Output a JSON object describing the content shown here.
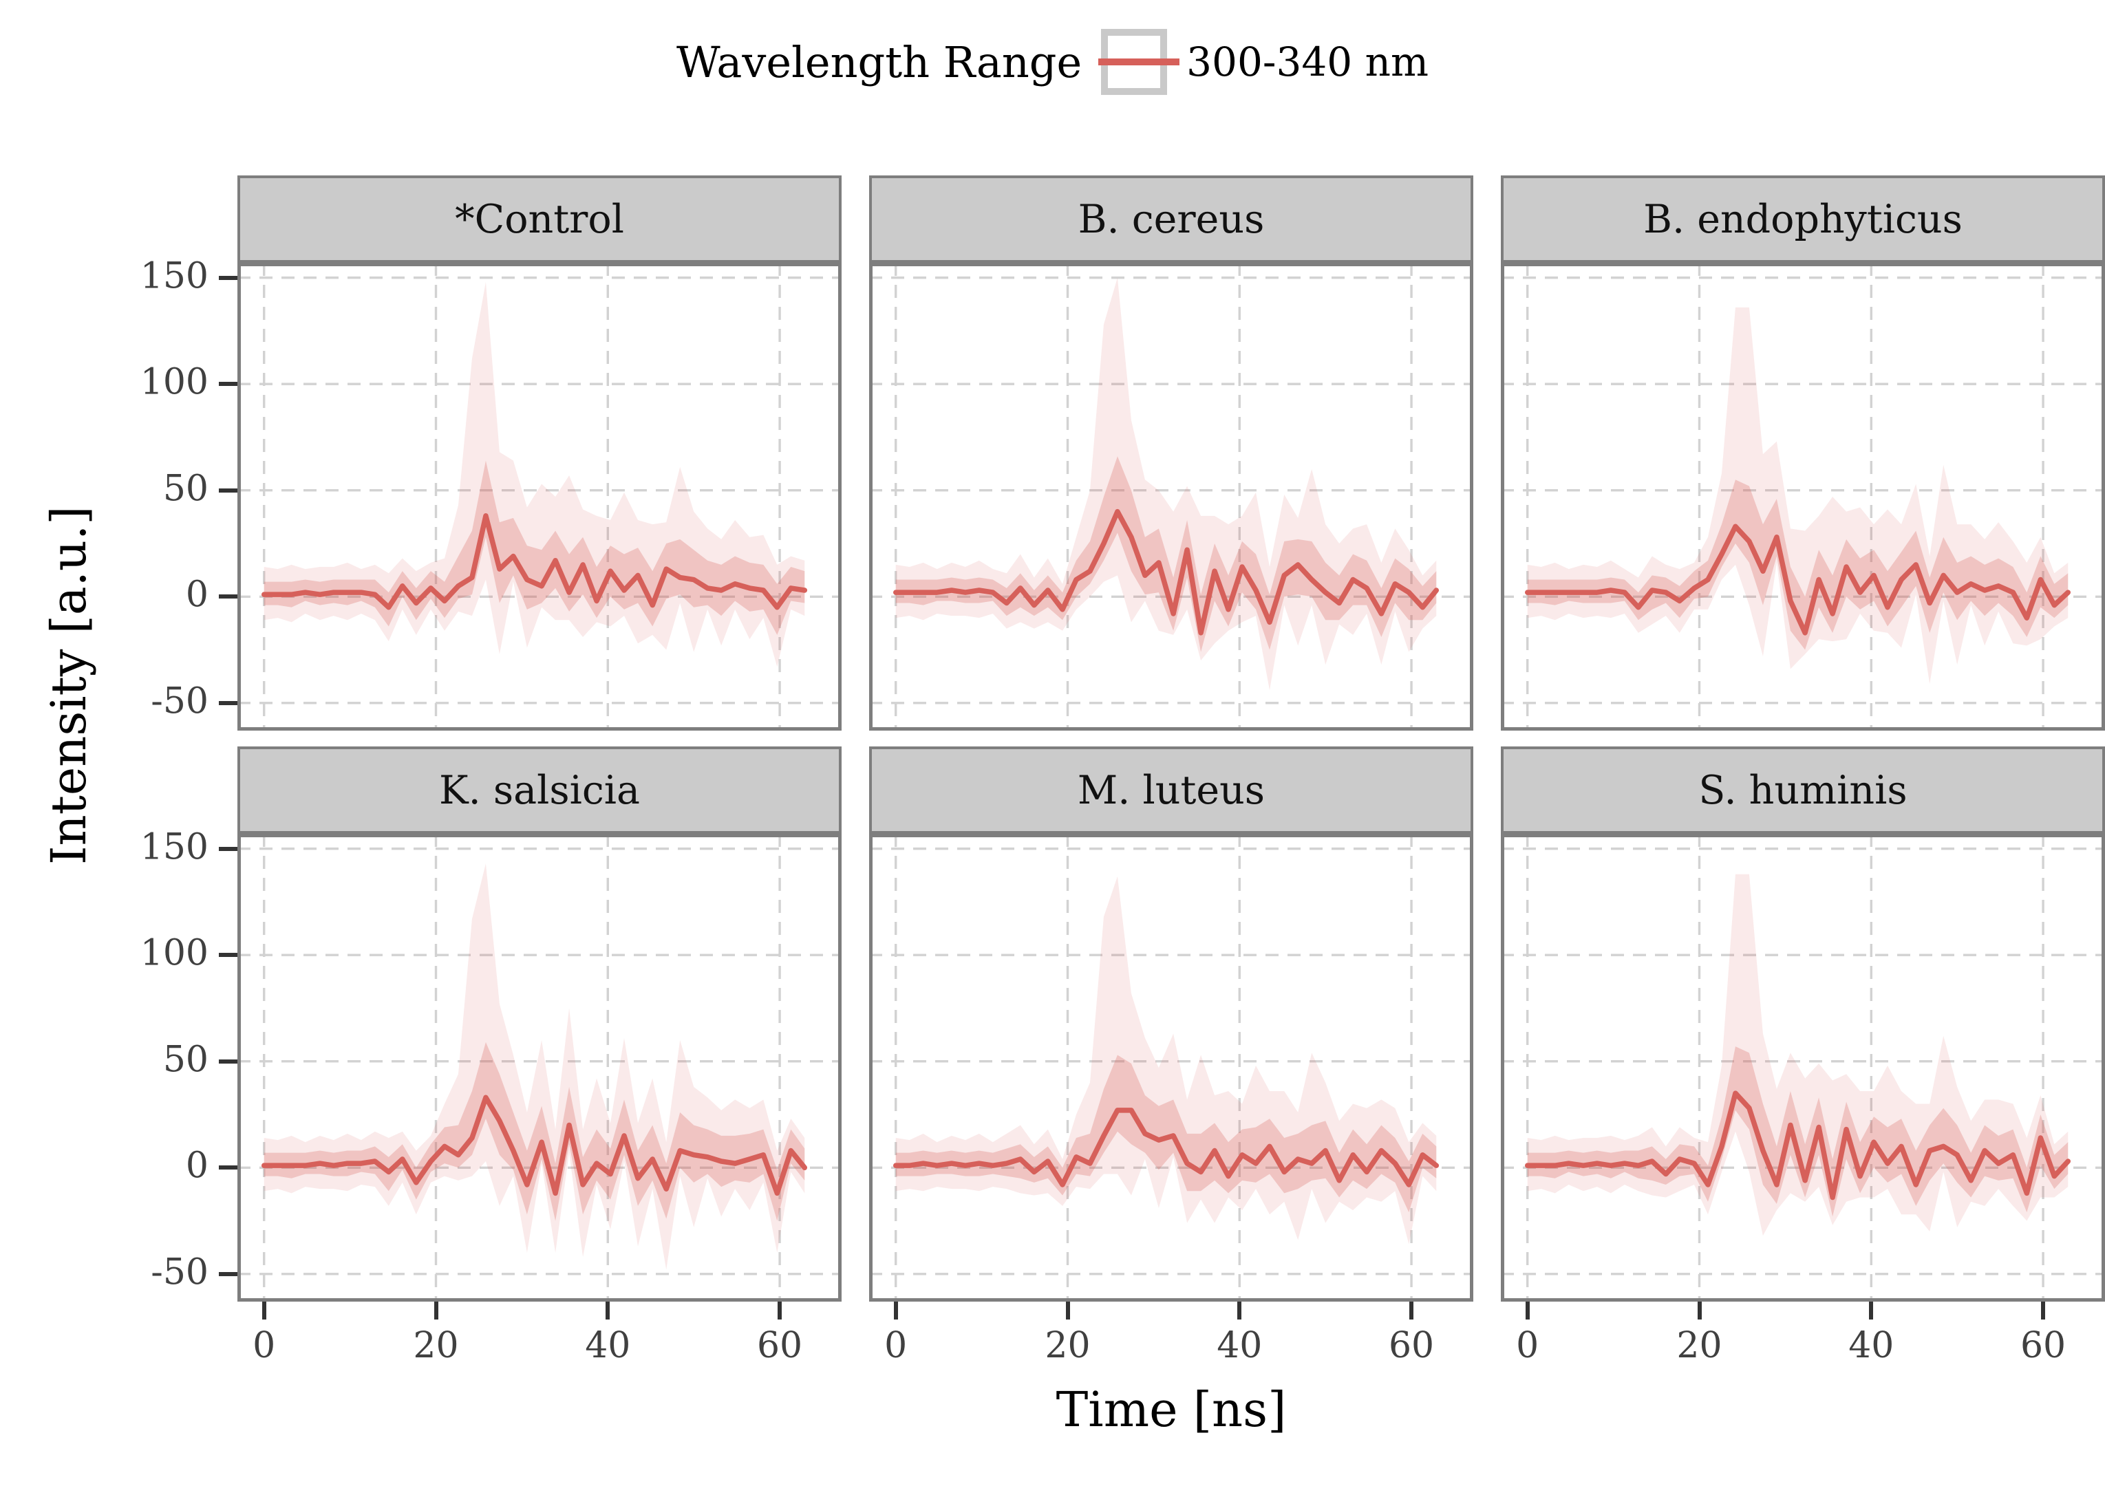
{
  "legend": {
    "title": "Wavelength Range",
    "entries": [
      {
        "label": "300-340 nm",
        "line_color": "#d6605a",
        "key_fill": "#ffffff",
        "key_border": "#c9c9c9"
      }
    ]
  },
  "axes": {
    "x": {
      "title": "Time [ns]",
      "ticks": [
        0,
        20,
        40,
        60
      ],
      "range": [
        -3.1,
        67.2
      ]
    },
    "y": {
      "title": "Intensity [a.u.]",
      "ticks": [
        150,
        100,
        50,
        0,
        -50
      ],
      "range": [
        -63,
        157
      ]
    }
  },
  "style": {
    "line_color": "#d6605a",
    "inner_band_fill": "rgba(214,96,89,0.27)",
    "outer_band_fill": "rgba(214,96,89,0.13)",
    "gridline_color": "#d2d2d2",
    "panel_border_color": "#7e7e7e",
    "strip_fill": "#cbcbcb",
    "tick_color": "#333333",
    "tick_label_color": "#404040"
  },
  "chart_data": {
    "type": "line",
    "description": "Six faceted panels; each shows a median intensity trace vs time with an inner and an outer uncertainty ribbon (band offsets relative to median).",
    "xlabel": "Time [ns]",
    "ylabel": "Intensity [a.u.]",
    "xlim": [
      -3.1,
      67.2
    ],
    "ylim": [
      -63,
      157
    ],
    "xticks": [
      0,
      20,
      40,
      60
    ],
    "yticks": [
      150,
      100,
      50,
      0,
      -50
    ],
    "grid": "dashed major",
    "legend_position": "top center",
    "x": [
      0,
      1.6,
      3.2,
      4.8,
      6.5,
      8.1,
      9.7,
      11.3,
      12.9,
      14.5,
      16.1,
      17.7,
      19.4,
      21.0,
      22.6,
      24.2,
      25.8,
      27.4,
      29.0,
      30.6,
      32.3,
      33.9,
      35.5,
      37.1,
      38.7,
      40.3,
      41.9,
      43.5,
      45.2,
      46.8,
      48.4,
      50.0,
      51.6,
      53.2,
      54.8,
      56.5,
      58.1,
      59.7,
      61.3,
      62.9
    ],
    "panels": [
      {
        "name": "*Control",
        "median": [
          1,
          1,
          1,
          2,
          1,
          2,
          2,
          2,
          1,
          -5,
          5,
          -3,
          4,
          -2,
          5,
          9,
          38,
          13,
          19,
          8,
          5,
          17,
          2,
          15,
          -2,
          12,
          3,
          10,
          -4,
          13,
          9,
          8,
          4,
          3,
          6,
          4,
          3,
          -5,
          4,
          3
        ]
      },
      {
        "name": "B. cereus",
        "median": [
          2,
          2,
          2,
          2,
          3,
          2,
          3,
          2,
          -3,
          4,
          -4,
          3,
          -6,
          8,
          12,
          25,
          40,
          28,
          10,
          16,
          -8,
          22,
          -17,
          12,
          -6,
          14,
          3,
          -12,
          10,
          15,
          8,
          2,
          -3,
          8,
          4,
          -8,
          6,
          2,
          -5,
          3
        ]
      },
      {
        "name": "B. endophyticus",
        "median": [
          2,
          2,
          2,
          2,
          2,
          2,
          3,
          2,
          -5,
          3,
          2,
          -2,
          4,
          8,
          20,
          33,
          26,
          12,
          28,
          -2,
          -17,
          8,
          -8,
          14,
          2,
          10,
          -5,
          8,
          15,
          -3,
          10,
          2,
          6,
          3,
          5,
          2,
          -10,
          8,
          -4,
          2
        ]
      },
      {
        "name": "K. salsicia",
        "median": [
          1,
          1,
          1,
          1,
          2,
          1,
          2,
          2,
          3,
          -2,
          4,
          -7,
          3,
          10,
          6,
          14,
          33,
          22,
          8,
          -8,
          12,
          -12,
          20,
          -8,
          2,
          -3,
          15,
          -5,
          4,
          -10,
          8,
          6,
          5,
          3,
          2,
          4,
          6,
          -12,
          8,
          0
        ]
      },
      {
        "name": "M. luteus",
        "median": [
          1,
          1,
          2,
          1,
          2,
          1,
          2,
          1,
          2,
          4,
          -2,
          3,
          -8,
          5,
          2,
          15,
          27,
          27,
          16,
          13,
          15,
          2,
          -2,
          8,
          -4,
          6,
          2,
          10,
          -2,
          4,
          2,
          8,
          -6,
          6,
          -2,
          8,
          2,
          -8,
          6,
          1
        ]
      },
      {
        "name": "S. huminis",
        "median": [
          1,
          1,
          1,
          2,
          1,
          2,
          1,
          2,
          1,
          3,
          -3,
          4,
          2,
          -8,
          10,
          35,
          28,
          8,
          -8,
          20,
          -6,
          19,
          -14,
          18,
          -4,
          12,
          2,
          10,
          -8,
          8,
          10,
          6,
          -6,
          8,
          2,
          6,
          -12,
          14,
          -4,
          3
        ]
      }
    ],
    "bands": {
      "note": "offsets added to / subtracted from each panel median to form ribbon envelopes",
      "inner_up": [
        6,
        6,
        6,
        6,
        6,
        6,
        6,
        6,
        7,
        7,
        7,
        7,
        8,
        9,
        14,
        22,
        26,
        22,
        18,
        16,
        17,
        14,
        18,
        13,
        16,
        12,
        17,
        13,
        16,
        12,
        18,
        14,
        13,
        12,
        13,
        12,
        12,
        11,
        10,
        9
      ],
      "inner_down": [
        5,
        5,
        6,
        4,
        5,
        5,
        6,
        4,
        6,
        9,
        5,
        8,
        5,
        8,
        6,
        8,
        10,
        16,
        9,
        14,
        8,
        13,
        9,
        14,
        8,
        12,
        9,
        13,
        10,
        14,
        8,
        13,
        8,
        12,
        8,
        11,
        9,
        13,
        6,
        6
      ],
      "outer_up": [
        13,
        12,
        14,
        11,
        13,
        12,
        14,
        11,
        14,
        16,
        13,
        15,
        12,
        20,
        38,
        103,
        110,
        55,
        45,
        34,
        48,
        30,
        55,
        26,
        40,
        24,
        46,
        26,
        38,
        22,
        52,
        32,
        28,
        24,
        30,
        24,
        26,
        20,
        15,
        14
      ],
      "outer_down": [
        12,
        11,
        13,
        10,
        12,
        11,
        13,
        10,
        12,
        16,
        11,
        15,
        10,
        14,
        12,
        18,
        30,
        40,
        12,
        32,
        10,
        28,
        13,
        34,
        10,
        26,
        12,
        32,
        14,
        38,
        12,
        34,
        10,
        26,
        12,
        24,
        13,
        28,
        10,
        12
      ]
    }
  }
}
